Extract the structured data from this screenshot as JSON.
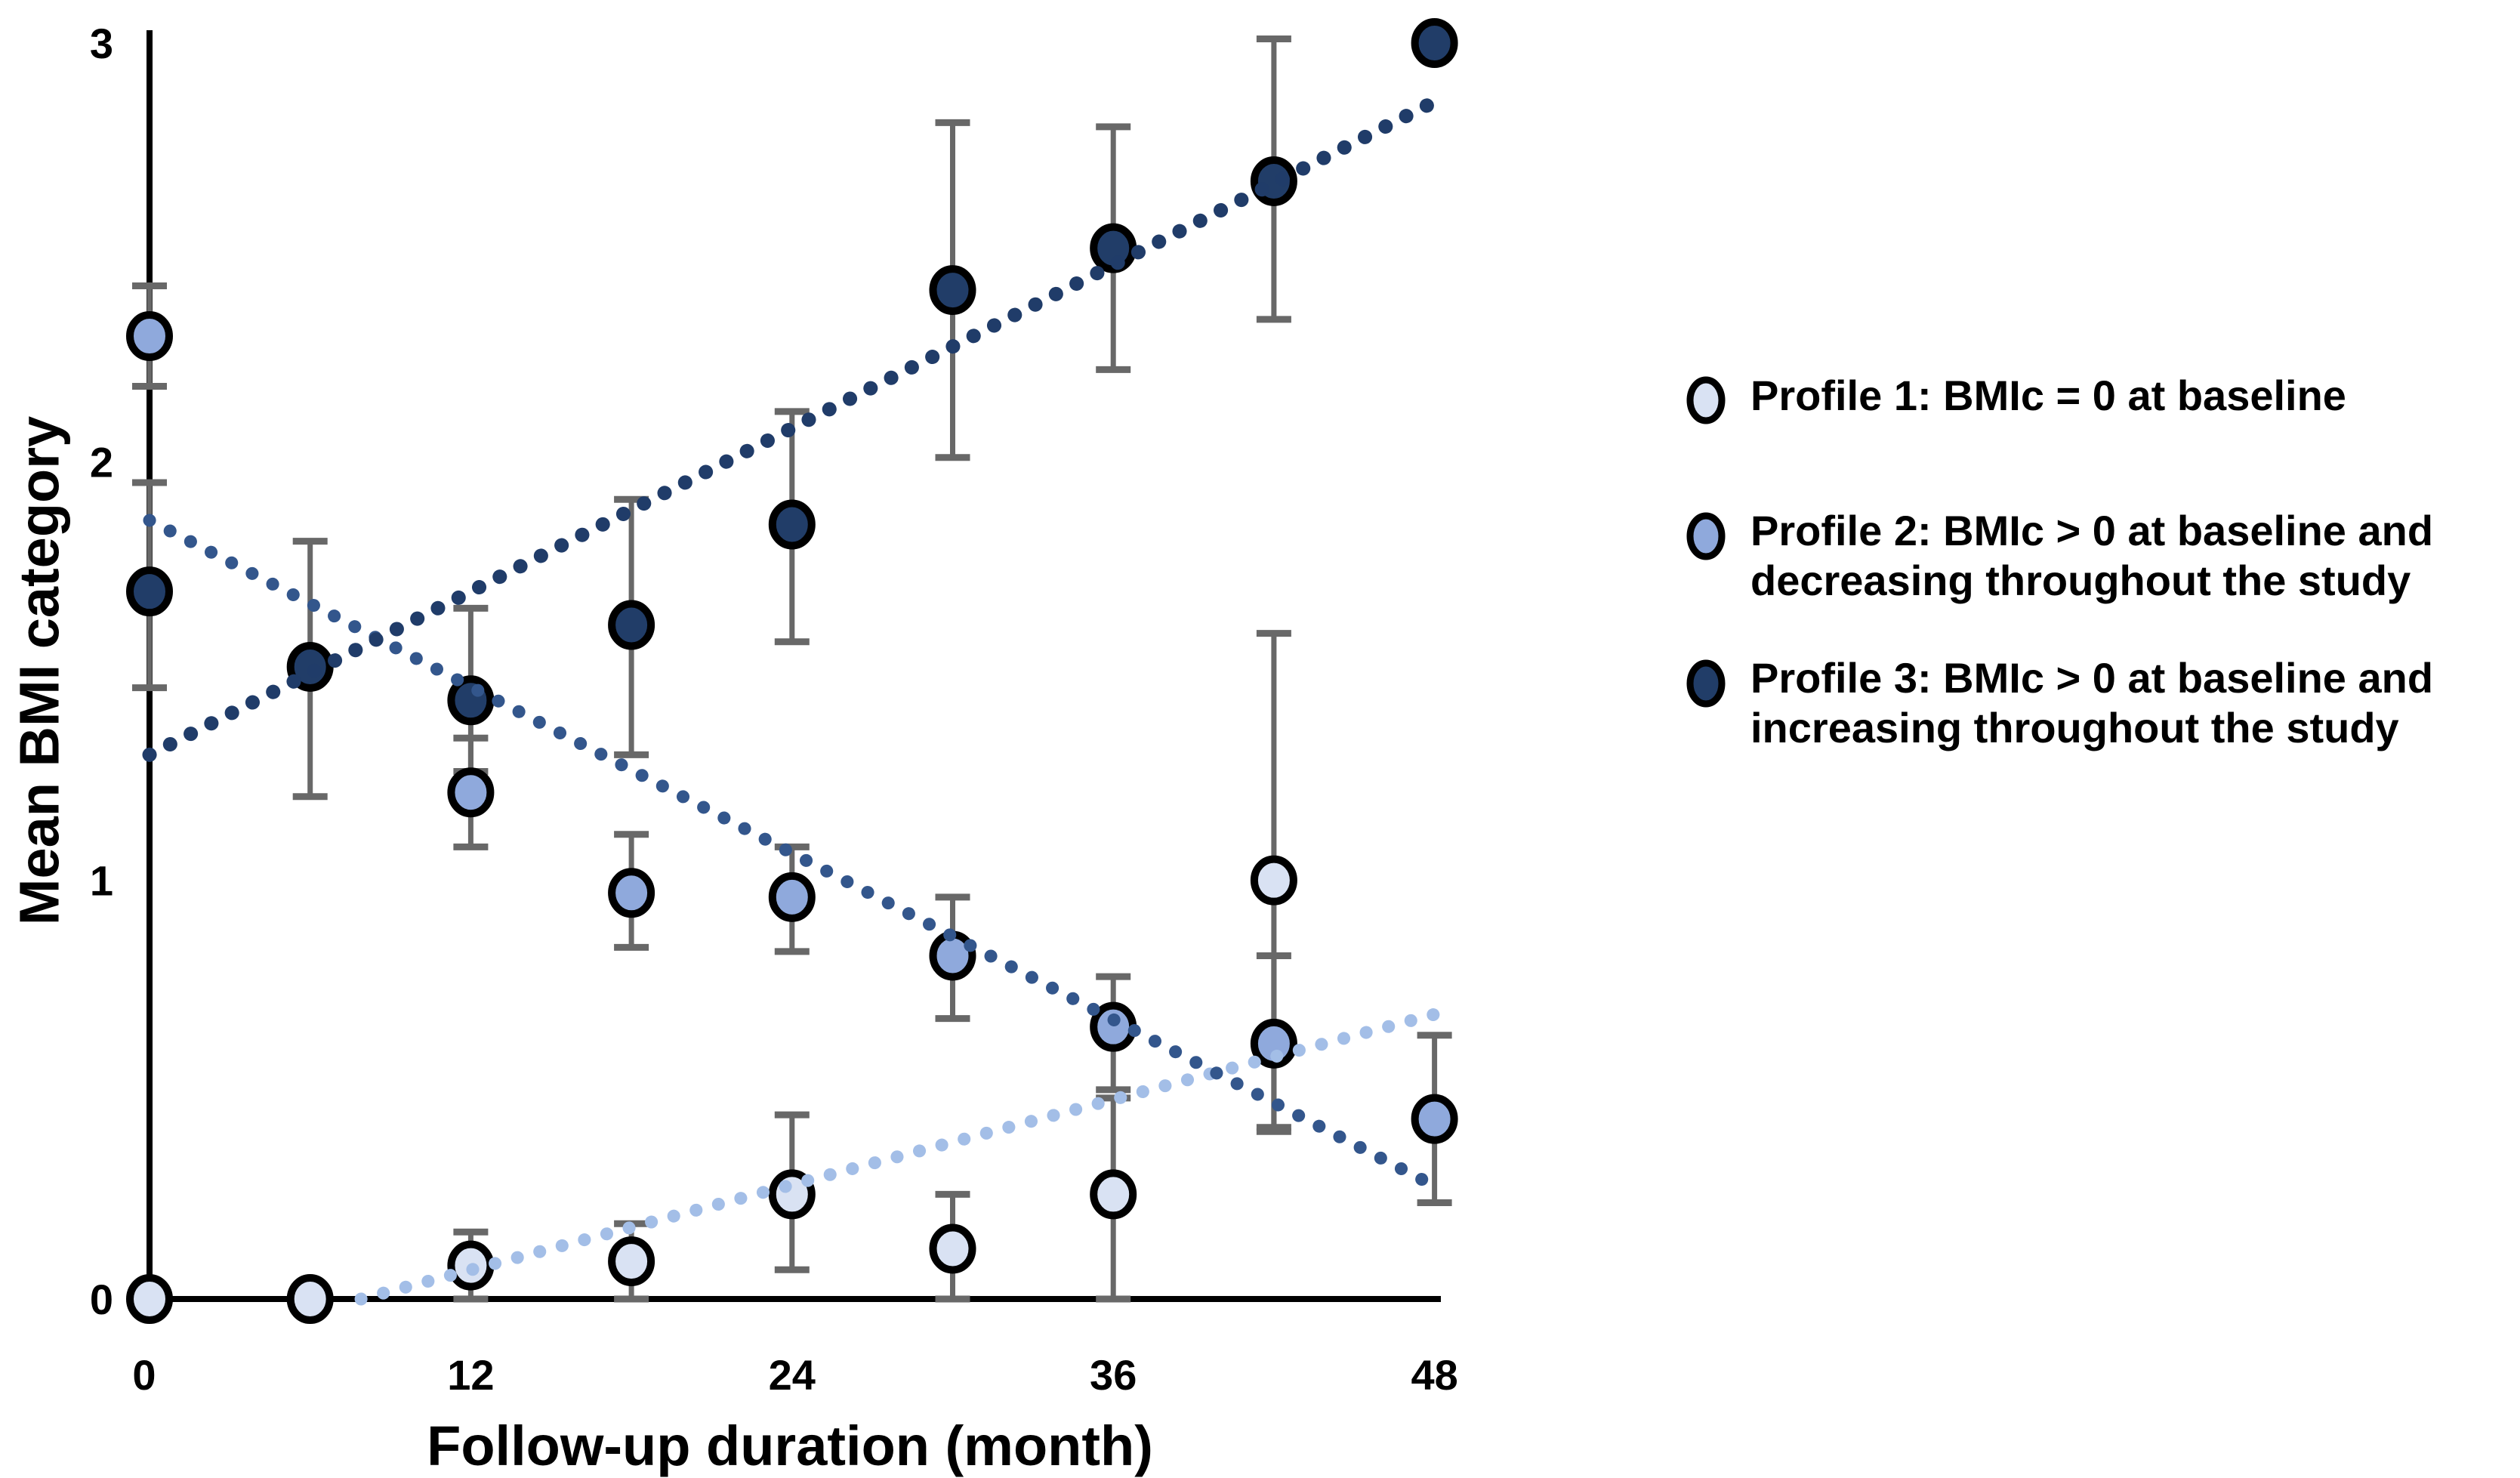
{
  "chart_data": {
    "type": "scatter",
    "title": "",
    "xlabel": "Follow-up duration (month)",
    "ylabel": "Mean BMI category",
    "xlim": [
      0,
      48
    ],
    "ylim": [
      0,
      3
    ],
    "x_ticks": [
      0,
      12,
      24,
      36,
      48
    ],
    "y_ticks": [
      0,
      1,
      2,
      3
    ],
    "grid": false,
    "legend_position": "right",
    "background_color": "#ffffff",
    "axis_color": "#000000",
    "text_color": "#000000",
    "error_bar_color": "#686868",
    "series": [
      {
        "id": "profile1",
        "name": "Profile 1: BMIc = 0 at baseline",
        "marker_fill": "#D9E2F3",
        "marker_stroke": "#000000",
        "trend_color": "#A3BEE7",
        "points": [
          {
            "x": 0,
            "y": 0.0
          },
          {
            "x": 6,
            "y": 0.0
          },
          {
            "x": 12,
            "y": 0.08,
            "err_up": 0.08,
            "err_down": 0.08
          },
          {
            "x": 18,
            "y": 0.09,
            "err_up": 0.09,
            "err_down": 0.09
          },
          {
            "x": 24,
            "y": 0.25,
            "err_up": 0.19,
            "err_down": 0.18
          },
          {
            "x": 30,
            "y": 0.12,
            "err_up": 0.13,
            "err_down": 0.12
          },
          {
            "x": 36,
            "y": 0.25,
            "err_up": 0.23,
            "err_down": 0.25
          },
          {
            "x": 42,
            "y": 1.0,
            "err_up": 0.59,
            "err_down": 0.59
          }
        ],
        "trend": {
          "x1": 7.9,
          "y1": 0.0,
          "x2": 48,
          "y2": 0.68
        }
      },
      {
        "id": "profile2",
        "name": "Profile 2: BMIc > 0 at baseline and decreasing throughout the study",
        "marker_fill": "#8FA9DC",
        "marker_stroke": "#000000",
        "trend_color": "#33568C",
        "points": [
          {
            "x": 0,
            "y": 2.3,
            "err_up": 0.12,
            "err_down": 0.12
          },
          {
            "x": 12,
            "y": 1.21,
            "err_up": 0.13,
            "err_down": 0.13
          },
          {
            "x": 18,
            "y": 0.97,
            "err_up": 0.14,
            "err_down": 0.13
          },
          {
            "x": 24,
            "y": 0.96,
            "err_up": 0.12,
            "err_down": 0.13
          },
          {
            "x": 30,
            "y": 0.82,
            "err_up": 0.14,
            "err_down": 0.15
          },
          {
            "x": 36,
            "y": 0.65,
            "err_up": 0.12,
            "err_down": 0.15
          },
          {
            "x": 42,
            "y": 0.61,
            "err_up": 0.21,
            "err_down": 0.21
          },
          {
            "x": 48,
            "y": 0.43,
            "err_up": 0.2,
            "err_down": 0.2
          }
        ],
        "trend": {
          "x1": 0,
          "y1": 1.86,
          "x2": 48,
          "y2": 0.27
        }
      },
      {
        "id": "profile3",
        "name": "Profile 3: BMIc > 0 at baseline and increasing throughout the study",
        "marker_fill": "#213D68",
        "marker_stroke": "#000000",
        "trend_color": "#203C69",
        "points": [
          {
            "x": 0,
            "y": 1.69,
            "err_up": 0.26,
            "err_down": 0.23
          },
          {
            "x": 6,
            "y": 1.51,
            "err_up": 0.3,
            "err_down": 0.31
          },
          {
            "x": 12,
            "y": 1.43,
            "err_up": 0.22,
            "err_down": 0.17
          },
          {
            "x": 18,
            "y": 1.61,
            "err_up": 0.3,
            "err_down": 0.31
          },
          {
            "x": 24,
            "y": 1.85,
            "err_up": 0.27,
            "err_down": 0.28
          },
          {
            "x": 30,
            "y": 2.41,
            "err_up": 0.4,
            "err_down": 0.4
          },
          {
            "x": 36,
            "y": 2.51,
            "err_up": 0.29,
            "err_down": 0.29
          },
          {
            "x": 42,
            "y": 2.67,
            "err_up": 0.34,
            "err_down": 0.33
          },
          {
            "x": 48,
            "y": 3.0
          }
        ],
        "trend": {
          "x1": 0,
          "y1": 1.3,
          "x2": 48,
          "y2": 2.86
        }
      }
    ]
  },
  "legend": {
    "items": [
      {
        "lines": [
          "Profile 1: BMIc = 0 at baseline",
          ""
        ]
      },
      {
        "lines": [
          "Profile 2: BMIc > 0 at baseline and",
          "decreasing throughout the study"
        ]
      },
      {
        "lines": [
          "Profile 3: BMIc > 0 at baseline and",
          "increasing throughout the study"
        ]
      }
    ]
  }
}
